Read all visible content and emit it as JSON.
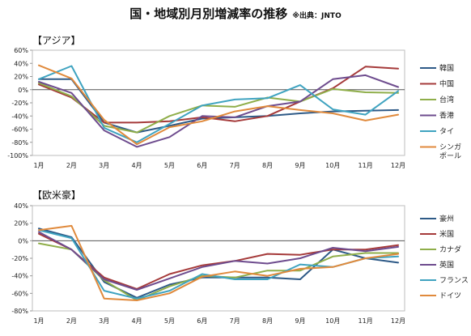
{
  "header": {
    "title": "国・地域別月別増減率の推移",
    "source_note": "※出典：JNTO"
  },
  "chart_data": [
    {
      "type": "line",
      "title": "【アジア】",
      "categories": [
        "1月",
        "2月",
        "3月",
        "4月",
        "5月",
        "6月",
        "7月",
        "8月",
        "9月",
        "10月",
        "11月",
        "12月"
      ],
      "ylim": [
        -100,
        60
      ],
      "yticks": [
        "60%",
        "40%",
        "20%",
        "0%",
        "-20%",
        "-40%",
        "-60%",
        "-80%",
        "-100%"
      ],
      "ytick_values": [
        60,
        40,
        20,
        0,
        -20,
        -40,
        -60,
        -80,
        -100
      ],
      "grid": false,
      "legend": "right",
      "series": [
        {
          "name": "韓国",
          "color": "#2E5A87",
          "values": [
            16,
            16,
            -50,
            -65,
            -55,
            -44,
            -42,
            -40,
            -36,
            -33,
            -32,
            -31
          ]
        },
        {
          "name": "中国",
          "color": "#A53A3A",
          "values": [
            8,
            -12,
            -50,
            -50,
            -48,
            -42,
            -48,
            -40,
            -18,
            2,
            35,
            32
          ]
        },
        {
          "name": "台湾",
          "color": "#8FAE4A",
          "values": [
            10,
            -10,
            -55,
            -65,
            -40,
            -24,
            -26,
            -12,
            -18,
            1,
            -4,
            -5
          ]
        },
        {
          "name": "香港",
          "color": "#6E4C8E",
          "values": [
            12,
            -5,
            -62,
            -87,
            -72,
            -40,
            -42,
            -25,
            -18,
            16,
            22,
            4
          ]
        },
        {
          "name": "タイ",
          "color": "#3FA3C0",
          "values": [
            16,
            36,
            -58,
            -80,
            -52,
            -24,
            -15,
            -13,
            7,
            -30,
            -38,
            -2
          ]
        },
        {
          "name": "シンガポール",
          "color": "#E08A3C",
          "values": [
            37,
            17,
            -46,
            -83,
            -57,
            -48,
            -33,
            -25,
            -31,
            -36,
            -47,
            -38
          ]
        }
      ]
    },
    {
      "type": "line",
      "title": "【欧米豪】",
      "categories": [
        "1月",
        "2月",
        "3月",
        "4月",
        "5月",
        "6月",
        "7月",
        "8月",
        "9月",
        "10月",
        "11月",
        "12月"
      ],
      "ylim": [
        -80,
        40
      ],
      "yticks": [
        "40%",
        "20%",
        "0%",
        "-20%",
        "-40%",
        "-60%",
        "-80%"
      ],
      "ytick_values": [
        40,
        20,
        0,
        -20,
        -40,
        -60,
        -80
      ],
      "grid": false,
      "legend": "right",
      "series": [
        {
          "name": "豪州",
          "color": "#2E5A87",
          "values": [
            14,
            4,
            -47,
            -65,
            -50,
            -42,
            -42,
            -42,
            -44,
            -10,
            -20,
            -25
          ]
        },
        {
          "name": "米国",
          "color": "#A53A3A",
          "values": [
            8,
            -10,
            -42,
            -55,
            -38,
            -28,
            -23,
            -15,
            -16,
            -10,
            -10,
            -5
          ]
        },
        {
          "name": "カナダ",
          "color": "#8FAE4A",
          "values": [
            -3,
            -10,
            -45,
            -68,
            -52,
            -40,
            -42,
            -34,
            -34,
            -18,
            -14,
            -14
          ]
        },
        {
          "name": "英国",
          "color": "#6E4C8E",
          "values": [
            10,
            -10,
            -44,
            -56,
            -43,
            -30,
            -23,
            -26,
            -20,
            -8,
            -12,
            -7
          ]
        },
        {
          "name": "フランス",
          "color": "#3FA3C0",
          "values": [
            12,
            3,
            -57,
            -66,
            -57,
            -38,
            -44,
            -44,
            -27,
            -30,
            -20,
            -18
          ]
        },
        {
          "name": "ドイツ",
          "color": "#E08A3C",
          "values": [
            12,
            17,
            -66,
            -68,
            -60,
            -41,
            -35,
            -40,
            -32,
            -30,
            -20,
            -15
          ]
        }
      ]
    }
  ]
}
